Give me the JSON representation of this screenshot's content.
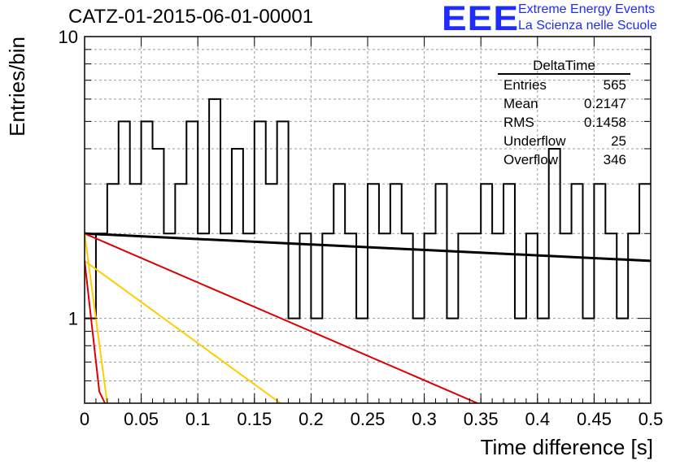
{
  "header": {
    "title": "CATZ-01-2015-06-01-00001",
    "logo": "EEE",
    "logo_line1": "Extreme Energy Events",
    "logo_line2": "La Scienza nelle Scuole"
  },
  "colors": {
    "histogram": "#000000",
    "fit_black": "#000000",
    "fit_red": "#dd0000",
    "fit_orange": "#ffcc00",
    "logo": "#1f2bff",
    "grid": "#999999"
  },
  "chart_data": {
    "type": "histogram",
    "title": "CATZ-01-2015-06-01-00001",
    "xlabel": "Time difference [s]",
    "ylabel": "Entries/bin",
    "xlim": [
      0,
      0.5
    ],
    "ylim": [
      0.5,
      10
    ],
    "yscale": "log",
    "grid": true,
    "xticks": [
      "0",
      "0.05",
      "0.1",
      "0.15",
      "0.2",
      "0.25",
      "0.3",
      "0.35",
      "0.4",
      "0.45",
      "0.5"
    ],
    "yticks": [
      "1",
      "10"
    ],
    "bin_width": 0.01,
    "bin_starts": [
      0,
      0.01,
      0.02,
      0.03,
      0.04,
      0.05,
      0.06,
      0.07,
      0.08,
      0.09,
      0.1,
      0.11,
      0.12,
      0.13,
      0.14,
      0.15,
      0.16,
      0.17,
      0.18,
      0.19,
      0.2,
      0.21,
      0.22,
      0.23,
      0.24,
      0.25,
      0.26,
      0.27,
      0.28,
      0.29,
      0.3,
      0.31,
      0.32,
      0.33,
      0.34,
      0.35,
      0.36,
      0.37,
      0.38,
      0.39,
      0.4,
      0.41,
      0.42,
      0.43,
      0.44,
      0.45,
      0.46,
      0.47,
      0.48,
      0.49
    ],
    "counts": [
      1,
      2,
      3,
      5,
      3,
      5,
      4,
      2,
      3,
      5,
      2,
      6,
      2,
      4,
      2,
      5,
      3,
      5,
      1,
      2,
      1,
      2,
      3,
      2,
      1,
      3,
      2,
      3,
      2,
      1,
      2,
      3,
      1,
      2,
      2,
      3,
      2,
      3,
      1,
      2,
      1,
      4,
      2,
      3,
      1,
      3,
      2,
      1,
      2,
      3
    ],
    "fits": [
      {
        "color": "black",
        "x": [
          0,
          0.5
        ],
        "y": [
          2.0,
          1.6
        ]
      },
      {
        "color": "red",
        "x": [
          0,
          0.347
        ],
        "y": [
          2.0,
          0.5
        ]
      },
      {
        "color": "orange",
        "x": [
          0,
          0.173
        ],
        "y": [
          1.6,
          0.5
        ]
      },
      {
        "color": "orange",
        "x": [
          0,
          0.02
        ],
        "y": [
          2.0,
          0.5
        ]
      },
      {
        "color": "red",
        "x": [
          0,
          0.013,
          0.018
        ],
        "y": [
          1.6,
          0.55,
          0.5
        ]
      }
    ],
    "stats": {
      "title": "DeltaTime",
      "rows": [
        {
          "label": "Entries",
          "value": "565"
        },
        {
          "label": "Mean",
          "value": "0.2147"
        },
        {
          "label": "RMS",
          "value": "0.1458"
        },
        {
          "label": "Underflow",
          "value": "25"
        },
        {
          "label": "Overflow",
          "value": "346"
        }
      ]
    }
  }
}
